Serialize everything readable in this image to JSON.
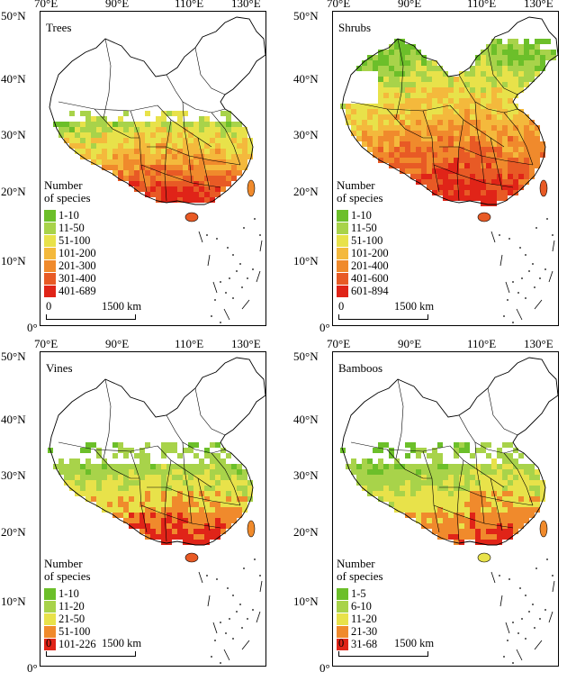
{
  "axes": {
    "longitudes": [
      "70°E",
      "90°E",
      "110°E",
      "130°E"
    ],
    "latitudes": [
      "50°N",
      "40°N",
      "30°N",
      "20°N",
      "10°N",
      "0°"
    ]
  },
  "scale_label": "1500 km",
  "legend_title_line1": "Number",
  "legend_title_line2": "of species",
  "colors": {
    "c1": "#6cbf2a",
    "c2": "#a8d34a",
    "c3": "#e8e24a",
    "c4": "#f4b93c",
    "c5": "#f08a2c",
    "c6": "#e85a25",
    "c7": "#e02418"
  },
  "panels": [
    {
      "title": "Trees",
      "legend": [
        {
          "label": "1-10",
          "color": "#6cbf2a"
        },
        {
          "label": "11-50",
          "color": "#a8d34a"
        },
        {
          "label": "51-100",
          "color": "#e8e24a"
        },
        {
          "label": "101-200",
          "color": "#f4b93c"
        },
        {
          "label": "201-300",
          "color": "#f08a2c"
        },
        {
          "label": "301-400",
          "color": "#e85a25"
        },
        {
          "label": "401-689",
          "color": "#e02418"
        }
      ]
    },
    {
      "title": "Shrubs",
      "legend": [
        {
          "label": "1-10",
          "color": "#6cbf2a"
        },
        {
          "label": "11-50",
          "color": "#a8d34a"
        },
        {
          "label": "51-100",
          "color": "#e8e24a"
        },
        {
          "label": "101-200",
          "color": "#f4b93c"
        },
        {
          "label": "201-400",
          "color": "#f08a2c"
        },
        {
          "label": "401-600",
          "color": "#e85a25"
        },
        {
          "label": "601-894",
          "color": "#e02418"
        }
      ]
    },
    {
      "title": "Vines",
      "legend": [
        {
          "label": "1-10",
          "color": "#6cbf2a"
        },
        {
          "label": "11-20",
          "color": "#a8d34a"
        },
        {
          "label": "21-50",
          "color": "#e8e24a"
        },
        {
          "label": "51-100",
          "color": "#f08a2c"
        },
        {
          "label": "101-226",
          "color": "#e02418"
        }
      ]
    },
    {
      "title": "Bamboos",
      "legend": [
        {
          "label": "1-5",
          "color": "#6cbf2a"
        },
        {
          "label": "6-10",
          "color": "#a8d34a"
        },
        {
          "label": "11-20",
          "color": "#e8e24a"
        },
        {
          "label": "21-30",
          "color": "#f08a2c"
        },
        {
          "label": "31-68",
          "color": "#e02418"
        }
      ]
    }
  ]
}
